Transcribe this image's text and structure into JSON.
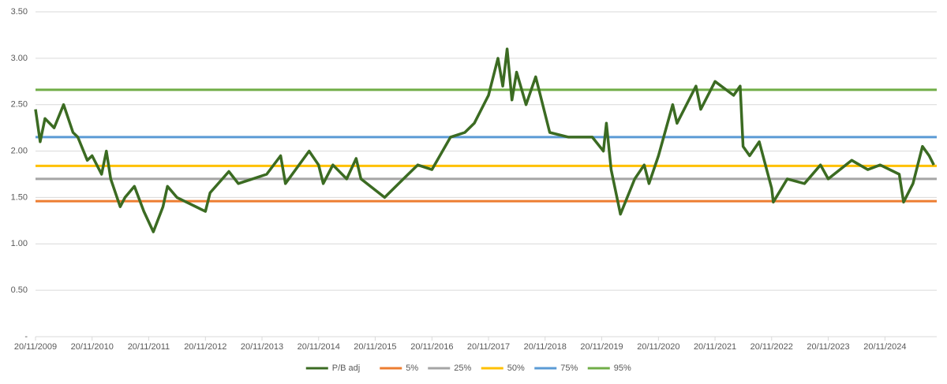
{
  "chart_data": {
    "type": "line",
    "x": [
      "20/11/2009",
      "20/12/2009",
      "20/01/2010",
      "20/03/2010",
      "20/05/2010",
      "20/07/2010",
      "20/08/2010",
      "20/10/2010",
      "20/11/2010",
      "20/01/2011",
      "20/02/2011",
      "20/03/2011",
      "20/05/2011",
      "20/06/2011",
      "20/08/2011",
      "20/10/2011",
      "20/12/2011",
      "20/02/2012",
      "20/03/2012",
      "20/05/2012",
      "20/07/2012",
      "20/11/2012",
      "20/12/2012",
      "20/04/2013",
      "20/06/2013",
      "20/09/2013",
      "20/12/2013",
      "20/03/2014",
      "20/04/2014",
      "20/09/2014",
      "20/11/2014",
      "20/12/2014",
      "20/02/2015",
      "20/05/2015",
      "20/07/2015",
      "20/08/2015",
      "20/01/2016",
      "20/05/2016",
      "20/08/2016",
      "20/11/2016",
      "20/03/2017",
      "20/06/2017",
      "20/08/2017",
      "20/11/2017",
      "20/01/2018",
      "20/02/2018",
      "20/03/2018",
      "20/04/2018",
      "20/05/2018",
      "20/07/2018",
      "20/09/2018",
      "20/12/2018",
      "20/04/2019",
      "20/09/2019",
      "01/12/2019",
      "20/12/2019",
      "20/01/2020",
      "20/03/2020",
      "20/06/2020",
      "20/08/2020",
      "20/09/2020",
      "20/11/2020",
      "01/01/2021",
      "20/02/2021",
      "20/03/2021",
      "20/07/2021",
      "20/08/2021",
      "20/11/2021",
      "20/03/2022",
      "01/05/2022",
      "20/05/2022",
      "01/07/2022",
      "01/09/2022",
      "20/11/2022",
      "01/12/2022",
      "01/03/2023",
      "20/06/2023",
      "01/10/2023",
      "20/11/2023",
      "20/04/2024",
      "01/08/2024",
      "20/10/2024",
      "20/02/2025",
      "20/03/2025",
      "20/05/2025",
      "20/07/2025",
      "01/09/2025",
      "01/10/2025"
    ],
    "series": [
      {
        "name": "P/B adj",
        "color": "#3b6b22",
        "values": [
          2.45,
          2.1,
          2.35,
          2.25,
          2.5,
          2.2,
          2.15,
          1.9,
          1.95,
          1.75,
          2.0,
          1.7,
          1.4,
          1.5,
          1.62,
          1.35,
          1.13,
          1.4,
          1.62,
          1.5,
          1.45,
          1.35,
          1.55,
          1.78,
          1.65,
          1.7,
          1.75,
          1.95,
          1.65,
          2.0,
          1.85,
          1.65,
          1.85,
          1.7,
          1.92,
          1.7,
          1.5,
          1.7,
          1.85,
          1.8,
          2.15,
          2.2,
          2.3,
          2.6,
          3.0,
          2.7,
          3.1,
          2.55,
          2.85,
          2.5,
          2.8,
          2.2,
          2.15,
          2.15,
          2.0,
          2.3,
          1.8,
          1.32,
          1.7,
          1.85,
          1.65,
          1.95,
          2.2,
          2.5,
          2.3,
          2.7,
          2.45,
          2.75,
          2.6,
          2.7,
          2.05,
          1.95,
          2.1,
          1.6,
          1.45,
          1.7,
          1.65,
          1.85,
          1.7,
          1.9,
          1.8,
          1.85,
          1.75,
          1.45,
          1.65,
          2.05,
          1.95,
          1.85
        ]
      }
    ],
    "reference_lines": [
      {
        "name": "5%",
        "color": "#ed7d31",
        "value": 1.46
      },
      {
        "name": "25%",
        "color": "#a5a5a5",
        "value": 1.7
      },
      {
        "name": "50%",
        "color": "#ffc000",
        "value": 1.84
      },
      {
        "name": "75%",
        "color": "#5b9bd5",
        "value": 2.15
      },
      {
        "name": "95%",
        "color": "#70ad47",
        "value": 2.66
      }
    ],
    "xlim": [
      "20/11/2009",
      "20/10/2025"
    ],
    "xticks": [
      "20/11/2009",
      "20/11/2010",
      "20/11/2011",
      "20/11/2012",
      "20/11/2013",
      "20/11/2014",
      "20/11/2015",
      "20/11/2016",
      "20/11/2017",
      "20/11/2018",
      "20/11/2019",
      "20/11/2020",
      "20/11/2021",
      "20/11/2022",
      "20/11/2023",
      "20/11/2024"
    ],
    "ylim": [
      0,
      3.5
    ],
    "yticks": [
      {
        "value": 0,
        "label": "-"
      },
      {
        "value": 0.5,
        "label": "0.50"
      },
      {
        "value": 1,
        "label": "1.00"
      },
      {
        "value": 1.5,
        "label": "1.50"
      },
      {
        "value": 2,
        "label": "2.00"
      },
      {
        "value": 2.5,
        "label": "2.50"
      },
      {
        "value": 3,
        "label": "3.00"
      },
      {
        "value": 3.5,
        "label": "3.50"
      }
    ],
    "grid": true,
    "legend": "bottom"
  }
}
